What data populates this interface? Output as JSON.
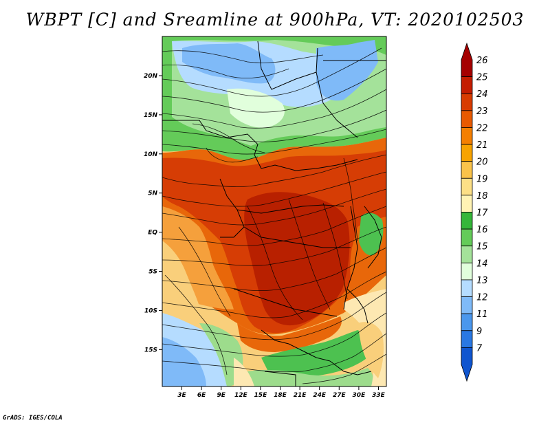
{
  "title": "WBPT [C] and Sreamline at 900hPa, VT: 2020102503",
  "credit": "GrADS: IGES/COLA",
  "axes": {
    "x_ticks": [
      "3E",
      "6E",
      "9E",
      "12E",
      "15E",
      "18E",
      "21E",
      "24E",
      "27E",
      "30E",
      "33E"
    ],
    "y_ticks": [
      "20N",
      "15N",
      "10N",
      "5N",
      "EQ",
      "5S",
      "10S",
      "15S"
    ]
  },
  "colorbar": {
    "labels": [
      "26",
      "25",
      "24",
      "23",
      "22",
      "21",
      "20",
      "19",
      "18",
      "17",
      "16",
      "15",
      "14",
      "13",
      "12",
      "11",
      "9",
      "7"
    ],
    "colors": [
      "#a50000",
      "#c41d00",
      "#d83c00",
      "#e85a00",
      "#f47f00",
      "#f7a300",
      "#fac34a",
      "#fcdf86",
      "#fff3b4",
      "#35b63a",
      "#64cb59",
      "#a4e29a",
      "#e1ffdc",
      "#b5dcff",
      "#7fbaf8",
      "#4b97ed",
      "#2a78e3",
      "#0f55cf"
    ]
  },
  "map": {
    "lon_range": [
      0,
      35
    ],
    "lat_range": [
      -20,
      25
    ],
    "colors": {
      "dark_red": "#b82000",
      "red": "#d63d05",
      "orange": "#e8670a",
      "light_orange": "#f5a03c",
      "tan": "#f9cf7b",
      "cream": "#fde8b2",
      "green": "#4dc150",
      "light_green": "#9ddc8c",
      "pale_green": "#d4f3c8",
      "light_blue": "#a8d0f7",
      "blue": "#6aa8ee",
      "dark_blue": "#3d85e0"
    }
  }
}
